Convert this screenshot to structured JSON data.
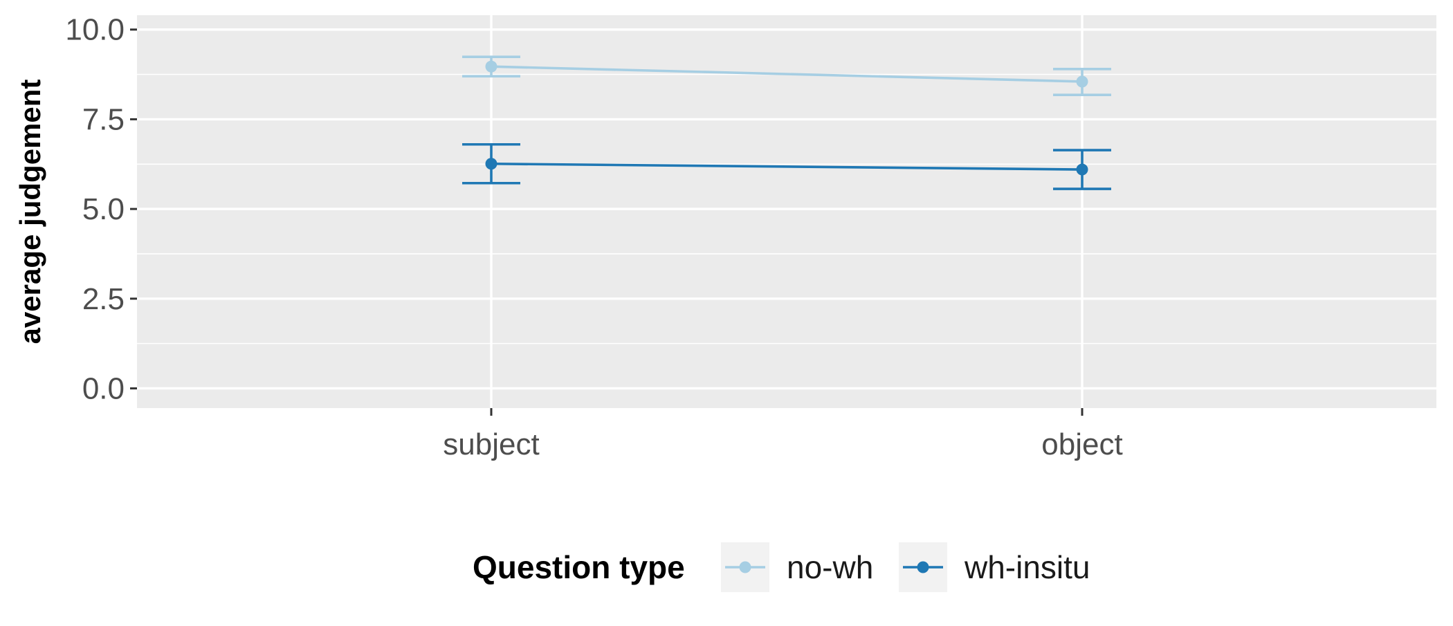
{
  "chart_data": {
    "type": "line",
    "title": "",
    "xlabel": "",
    "ylabel": "average judgement",
    "categories": [
      "subject",
      "object"
    ],
    "ylim": [
      -0.55,
      10.4
    ],
    "yticks": [
      0.0,
      2.5,
      5.0,
      7.5,
      10.0
    ],
    "ytick_labels": [
      "0.0",
      "2.5",
      "5.0",
      "7.5",
      "10.0"
    ],
    "grid": true,
    "legend": {
      "title": "Question type",
      "position": "bottom"
    },
    "series": [
      {
        "name": "no-wh",
        "color": "#a6cee3",
        "values": [
          8.97,
          8.55
        ],
        "error_low": [
          8.7,
          8.18
        ],
        "error_high": [
          9.24,
          8.9
        ]
      },
      {
        "name": "wh-insitu",
        "color": "#1f78b4",
        "values": [
          6.26,
          6.1
        ],
        "error_low": [
          5.72,
          5.56
        ],
        "error_high": [
          6.8,
          6.64
        ]
      }
    ]
  }
}
